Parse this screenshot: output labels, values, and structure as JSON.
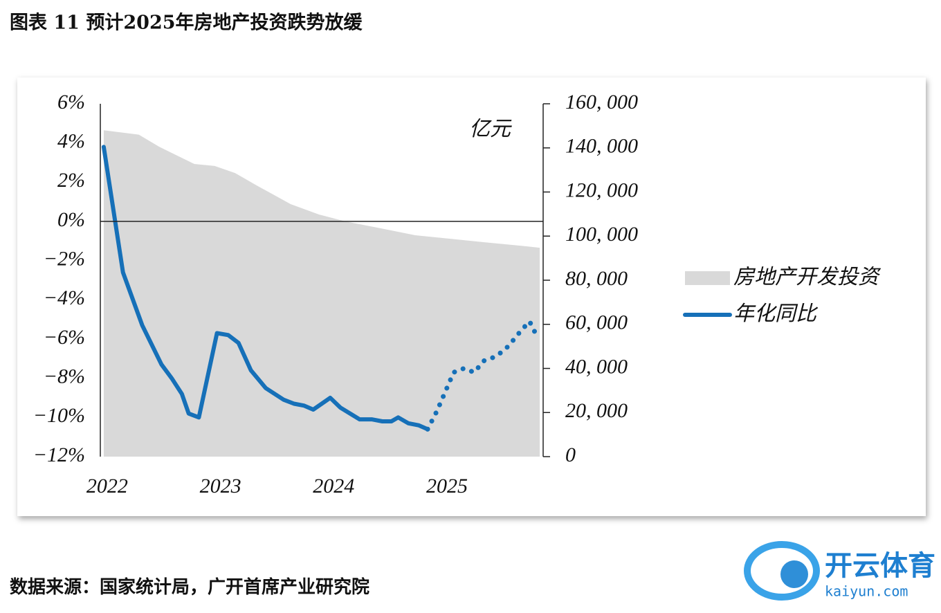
{
  "chart_data": {
    "type": "line-area",
    "title": "图表 11 预计2025年房地产投资跌势放缓",
    "y2label": "亿元",
    "xlim": [
      2021.97,
      2025.88
    ],
    "xticks": [
      2022,
      2023,
      2024,
      2025
    ],
    "ylim": [
      -12,
      6
    ],
    "yticks": [
      {
        "value": -12,
        "label": "−12%"
      },
      {
        "value": -10,
        "label": "−10%"
      },
      {
        "value": -8,
        "label": "−8%"
      },
      {
        "value": -6,
        "label": "−6%"
      },
      {
        "value": -4,
        "label": "−4%"
      },
      {
        "value": -2,
        "label": "−2%"
      },
      {
        "value": 0,
        "label": "0%"
      },
      {
        "value": 2,
        "label": "2%"
      },
      {
        "value": 4,
        "label": "4%"
      },
      {
        "value": 6,
        "label": "6%"
      }
    ],
    "y2lim": [
      0,
      160000
    ],
    "y2ticks": [
      0,
      {
        "value": 20000,
        "label": "20, 000"
      },
      {
        "value": 40000,
        "label": "40, 000"
      },
      {
        "value": 60000,
        "label": "60, 000"
      },
      {
        "value": 80000,
        "label": "80, 000"
      },
      {
        "value": 100000,
        "label": "100, 000"
      },
      {
        "value": 120000,
        "label": "120, 000"
      },
      {
        "value": 140000,
        "label": "140, 000"
      },
      {
        "value": 160000,
        "label": "160, 000"
      }
    ],
    "grid": false,
    "legend": "right",
    "series": [
      {
        "name": "房地产开发投资",
        "kind": "area",
        "axis": "y2",
        "color": "#d9d9d9",
        "x": [
          2022.0,
          2022.31,
          2022.49,
          2022.8,
          2022.98,
          2023.16,
          2023.35,
          2023.65,
          2023.9,
          2024.14,
          2024.45,
          2024.75,
          2025.06,
          2025.36,
          2025.67,
          2025.85
        ],
        "values": [
          148000,
          146000,
          140500,
          132700,
          131800,
          128600,
          123000,
          114500,
          109800,
          106600,
          103500,
          100400,
          98800,
          97200,
          95700,
          94700
        ]
      },
      {
        "name": "年化同比",
        "kind": "line",
        "axis": "y",
        "color": "#1670b8",
        "dotted_from": 2024.86,
        "x": [
          2022.0,
          2022.17,
          2022.34,
          2022.51,
          2022.6,
          2022.69,
          2022.75,
          2022.84,
          2023.0,
          2023.1,
          2023.19,
          2023.3,
          2023.43,
          2023.59,
          2023.68,
          2023.77,
          2023.85,
          2024.0,
          2024.09,
          2024.26,
          2024.37,
          2024.46,
          2024.54,
          2024.6,
          2024.69,
          2024.78,
          2024.86,
          2024.94,
          2025.03,
          2025.09,
          2025.18,
          2025.27,
          2025.36,
          2025.46,
          2025.55,
          2025.64,
          2025.68,
          2025.76,
          2025.82
        ],
        "values": [
          3.8,
          -2.6,
          -5.3,
          -7.3,
          -8.0,
          -8.8,
          -9.8,
          -10.0,
          -5.7,
          -5.8,
          -6.2,
          -7.6,
          -8.5,
          -9.1,
          -9.3,
          -9.4,
          -9.6,
          -9.0,
          -9.5,
          -10.1,
          -10.1,
          -10.2,
          -10.2,
          -10.0,
          -10.3,
          -10.4,
          -10.6,
          -9.7,
          -8.5,
          -7.7,
          -7.5,
          -7.7,
          -7.1,
          -6.9,
          -6.5,
          -5.9,
          -5.6,
          -5.1,
          -5.8
        ]
      }
    ]
  },
  "source": "数据来源：国家统计局，广开首席产业研究院",
  "watermark": {
    "brand": "开云体育",
    "url": "kaiyun.com"
  }
}
